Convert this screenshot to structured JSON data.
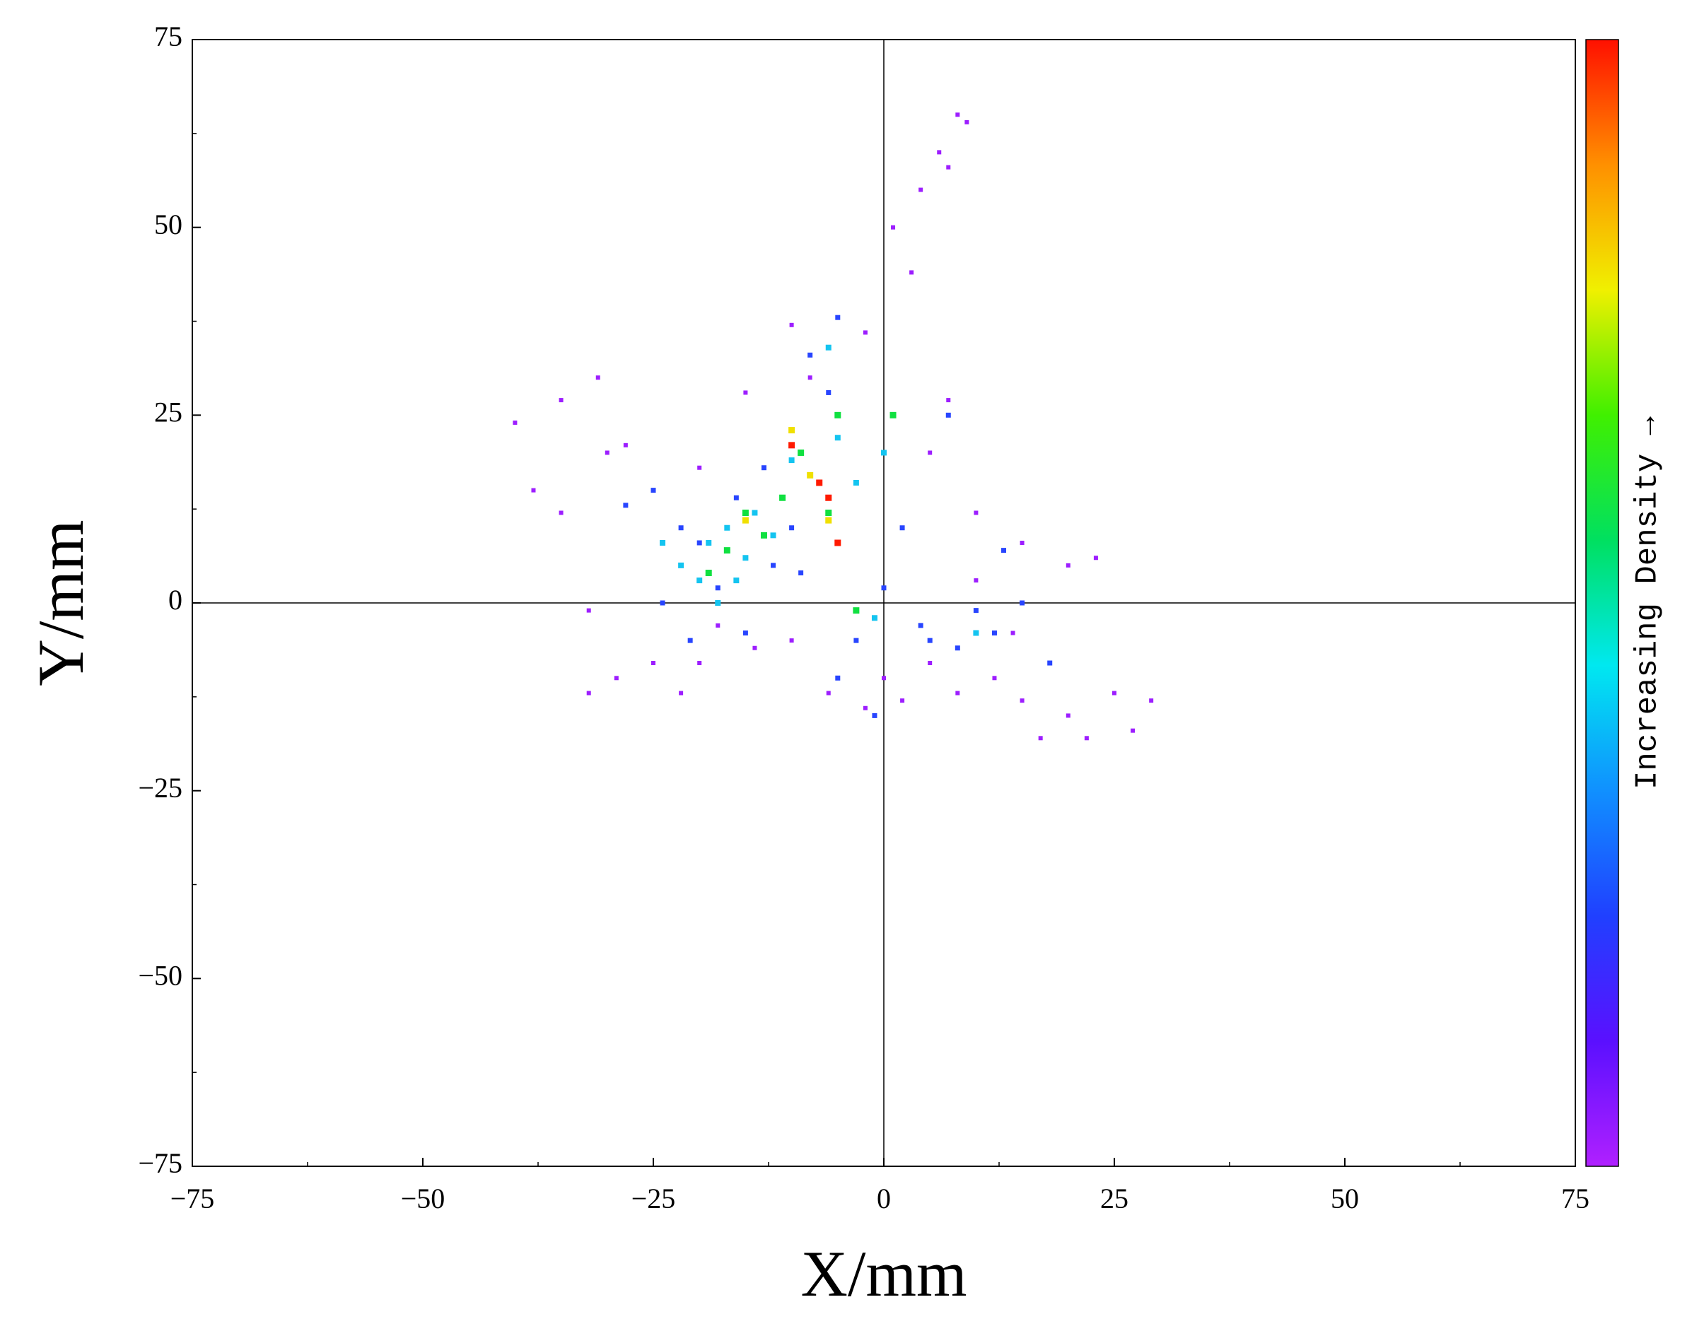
{
  "chart_data": {
    "type": "scatter",
    "x_label": "X/mm",
    "y_label": "Y/mm",
    "xlim": [
      -75,
      75
    ],
    "ylim": [
      -75,
      75
    ],
    "xticks": [
      {
        "value": -75,
        "label": "−75"
      },
      {
        "value": -50,
        "label": "−50"
      },
      {
        "value": -25,
        "label": "−25"
      },
      0,
      25,
      50,
      75
    ],
    "yticks": [
      {
        "value": -75,
        "label": "−75"
      },
      {
        "value": -50,
        "label": "−50"
      },
      {
        "value": -25,
        "label": "−25"
      },
      0,
      25,
      50,
      75
    ],
    "zero_lines": true,
    "colorbar": {
      "label": "Increasing Density →",
      "colors": [
        "#b020ff",
        "#5a10ff",
        "#2040ff",
        "#1090ff",
        "#00e8f0",
        "#00e060",
        "#40f000",
        "#f0f000",
        "#ff9000",
        "#ff1000"
      ]
    },
    "series": [
      {
        "color": "#9d1eff",
        "x": [
          -40,
          -38,
          -35,
          -35,
          -31,
          -30,
          -28,
          -32,
          -32,
          -29,
          -25,
          -22,
          -20,
          -14,
          -10,
          -6,
          -2,
          0,
          2,
          5,
          8,
          12,
          15,
          17,
          20,
          22,
          25,
          27,
          29,
          23,
          20,
          15,
          10,
          7,
          5,
          3,
          1,
          4,
          6,
          8,
          9,
          7,
          -2,
          -10,
          -15,
          -20,
          -18,
          -8,
          10,
          14
        ],
        "values": [
          24,
          15,
          27,
          12,
          30,
          20,
          21,
          -1,
          -12,
          -10,
          -8,
          -12,
          -8,
          -6,
          -5,
          -12,
          -14,
          -10,
          -13,
          -8,
          -12,
          -10,
          -13,
          -18,
          -15,
          -18,
          -12,
          -17,
          -13,
          6,
          5,
          8,
          12,
          27,
          20,
          44,
          50,
          55,
          60,
          65,
          64,
          58,
          36,
          37,
          28,
          18,
          -3,
          30,
          3,
          -4
        ]
      },
      {
        "color": "#2845ff",
        "x": [
          -25,
          -22,
          -20,
          -18,
          -15,
          -12,
          -10,
          -8,
          -5,
          -6,
          -3,
          -5,
          0,
          2,
          5,
          8,
          10,
          13,
          15,
          18,
          12,
          -24,
          -21,
          -16,
          -13,
          7,
          -1,
          4,
          -9,
          -28
        ],
        "values": [
          15,
          10,
          8,
          2,
          -4,
          5,
          10,
          33,
          38,
          28,
          -5,
          -10,
          2,
          10,
          -5,
          -6,
          -1,
          7,
          0,
          -8,
          -4,
          0,
          -5,
          14,
          18,
          25,
          -15,
          -3,
          4,
          13
        ]
      },
      {
        "color": "#14c4f0",
        "x": [
          -22,
          -20,
          -19,
          -17,
          -15,
          -14,
          -12,
          -18,
          -10,
          -5,
          0,
          -3,
          -1,
          10,
          -24,
          -16,
          -6
        ],
        "values": [
          5,
          3,
          8,
          10,
          6,
          12,
          9,
          0,
          19,
          22,
          20,
          16,
          -2,
          -4,
          8,
          3,
          34
        ]
      },
      {
        "color": "#10e040",
        "x": [
          -17,
          -15,
          -11,
          -9,
          -5,
          1,
          -3,
          -13,
          -19,
          -6
        ],
        "values": [
          7,
          12,
          14,
          20,
          25,
          25,
          -1,
          9,
          4,
          12
        ]
      },
      {
        "color": "#f0e000",
        "x": [
          -10,
          -6,
          -15,
          -8
        ],
        "values": [
          23,
          11,
          11,
          17
        ]
      },
      {
        "color": "#ff1a00",
        "x": [
          -10,
          -7,
          -6,
          -5
        ],
        "values": [
          21,
          16,
          14,
          8
        ]
      }
    ]
  }
}
